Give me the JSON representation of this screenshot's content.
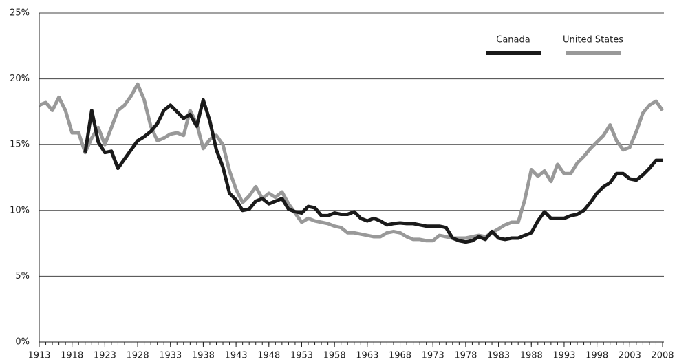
{
  "chart_data": {
    "type": "line",
    "x": [
      1913,
      1914,
      1915,
      1916,
      1917,
      1918,
      1919,
      1920,
      1921,
      1922,
      1923,
      1924,
      1925,
      1926,
      1927,
      1928,
      1929,
      1930,
      1931,
      1932,
      1933,
      1934,
      1935,
      1936,
      1937,
      1938,
      1939,
      1940,
      1941,
      1942,
      1943,
      1944,
      1945,
      1946,
      1947,
      1948,
      1949,
      1950,
      1951,
      1952,
      1953,
      1954,
      1955,
      1956,
      1957,
      1958,
      1959,
      1960,
      1961,
      1962,
      1963,
      1964,
      1965,
      1966,
      1967,
      1968,
      1969,
      1970,
      1971,
      1972,
      1973,
      1974,
      1975,
      1976,
      1977,
      1978,
      1979,
      1980,
      1981,
      1982,
      1983,
      1984,
      1985,
      1986,
      1987,
      1988,
      1989,
      1990,
      1991,
      1992,
      1993,
      1994,
      1995,
      1996,
      1997,
      1998,
      1999,
      2000,
      2001,
      2002,
      2003,
      2004,
      2005,
      2006,
      2007,
      2008
    ],
    "series": [
      {
        "name": "Canada",
        "color": "#1a1a1a",
        "values": [
          null,
          null,
          null,
          null,
          null,
          null,
          null,
          14.4,
          17.6,
          15.2,
          14.4,
          14.5,
          13.2,
          13.9,
          14.6,
          15.3,
          15.6,
          16.0,
          16.6,
          17.6,
          18.0,
          17.5,
          17.0,
          17.3,
          16.4,
          18.4,
          16.8,
          14.6,
          13.3,
          11.3,
          10.8,
          10.0,
          10.1,
          10.7,
          10.9,
          10.5,
          10.7,
          10.9,
          10.1,
          9.9,
          9.8,
          10.3,
          10.2,
          9.6,
          9.6,
          9.8,
          9.7,
          9.7,
          9.9,
          9.4,
          9.2,
          9.4,
          9.2,
          8.9,
          9.0,
          9.05,
          9.0,
          9.0,
          8.9,
          8.8,
          8.8,
          8.8,
          8.7,
          7.9,
          7.7,
          7.6,
          7.7,
          8.0,
          7.8,
          8.4,
          7.9,
          7.8,
          7.9,
          7.9,
          8.1,
          8.3,
          9.2,
          9.9,
          9.4,
          9.4,
          9.4,
          9.6,
          9.7,
          10.0,
          10.6,
          11.3,
          11.8,
          12.1,
          12.8,
          12.8,
          12.4,
          12.3,
          12.7,
          13.2,
          13.8,
          13.8
        ]
      },
      {
        "name": "United States",
        "color": "#999999",
        "values": [
          18.0,
          18.2,
          17.6,
          18.6,
          17.6,
          15.9,
          15.9,
          14.4,
          15.5,
          16.3,
          15.0,
          16.3,
          17.6,
          18.0,
          18.7,
          19.6,
          18.4,
          16.4,
          15.3,
          15.5,
          15.8,
          15.9,
          15.7,
          17.6,
          16.6,
          14.7,
          15.4,
          15.7,
          15.0,
          13.0,
          11.6,
          10.6,
          11.1,
          11.8,
          10.9,
          11.3,
          11.0,
          11.4,
          10.5,
          9.8,
          9.1,
          9.4,
          9.2,
          9.1,
          9.0,
          8.8,
          8.7,
          8.3,
          8.3,
          8.2,
          8.1,
          8.0,
          8.0,
          8.3,
          8.4,
          8.3,
          8.0,
          7.8,
          7.8,
          7.7,
          7.7,
          8.1,
          8.0,
          7.9,
          7.9,
          7.9,
          8.0,
          8.1,
          8.0,
          8.3,
          8.6,
          8.9,
          9.1,
          9.1,
          10.8,
          13.1,
          12.6,
          13.0,
          12.2,
          13.5,
          12.8,
          12.8,
          13.6,
          14.1,
          14.7,
          15.2,
          15.7,
          16.5,
          15.3,
          14.6,
          14.8,
          16.0,
          17.4,
          18.0,
          18.3,
          17.6
        ]
      }
    ],
    "xlim": [
      1913,
      2008
    ],
    "xticks": [
      1913,
      1918,
      1923,
      1928,
      1933,
      1938,
      1943,
      1948,
      1953,
      1958,
      1963,
      1968,
      1973,
      1978,
      1983,
      1988,
      1993,
      1998,
      2003,
      2008
    ],
    "ylim": [
      0,
      25
    ],
    "yticks": [
      {
        "value": 0,
        "label": "0%"
      },
      {
        "value": 5,
        "label": "5%"
      },
      {
        "value": 10,
        "label": "10%"
      },
      {
        "value": 15,
        "label": "15%"
      },
      {
        "value": 20,
        "label": "20%"
      },
      {
        "value": 25,
        "label": "25%"
      }
    ],
    "grid": true,
    "legend": "top-right"
  }
}
